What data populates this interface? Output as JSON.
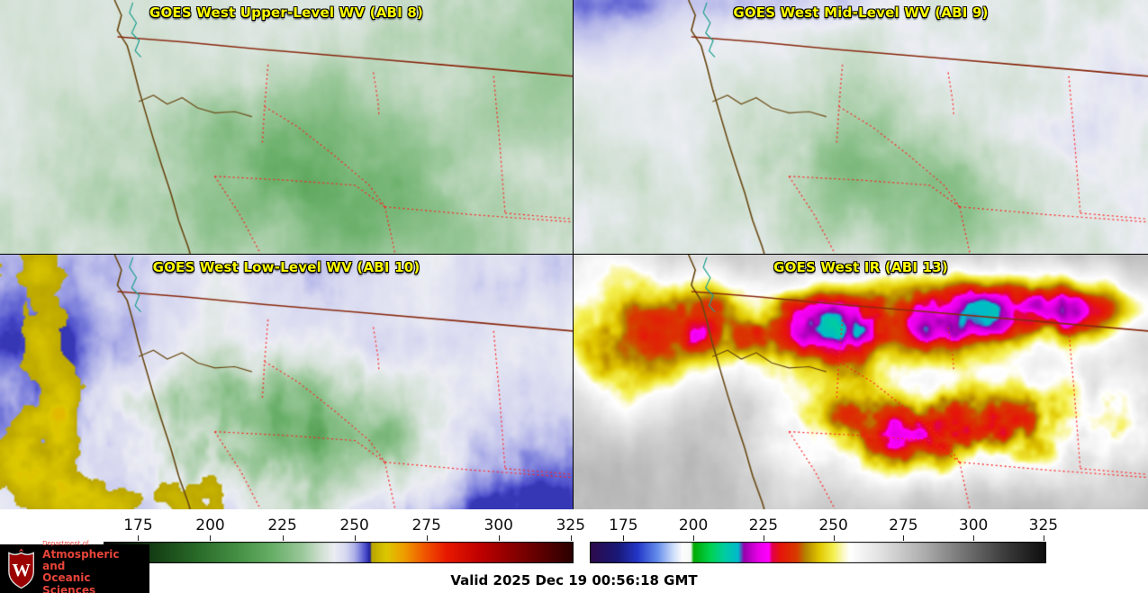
{
  "panels": [
    {
      "id": "abi8",
      "title": "GOES West Upper-Level WV (ABI 8)"
    },
    {
      "id": "abi9",
      "title": "GOES West Mid-Level WV (ABI 9)"
    },
    {
      "id": "abi10",
      "title": "GOES West Low-Level WV (ABI 10)"
    },
    {
      "id": "abi13",
      "title": "GOES West IR (ABI 13)"
    }
  ],
  "colorbars": {
    "wv": {
      "ticks": [
        "175",
        "200",
        "225",
        "250",
        "275",
        "300",
        "325"
      ]
    },
    "ir": {
      "ticks": [
        "175",
        "200",
        "225",
        "250",
        "275",
        "300",
        "325"
      ]
    }
  },
  "branding": {
    "crest_letter": "W",
    "dept_prefix": "Department of",
    "dept_line1": "Atmospheric and",
    "dept_line2": "Oceanic Sciences"
  },
  "footer": {
    "valid_text": "Valid 2025 Dec 19 00:56:18 GMT"
  },
  "colors": {
    "panel_title": "#ffff00",
    "uw_red": "#e8443a",
    "crest_red": "#9b0000",
    "state_border_red": "#ff2222",
    "coastline_brown": "#6b4a14",
    "water_outline_teal": "#20a090",
    "logo_background": "#000000",
    "page_background": "#ffffff"
  }
}
